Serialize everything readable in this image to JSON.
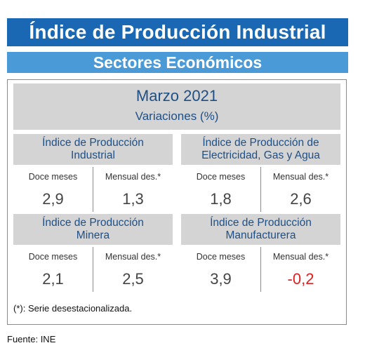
{
  "header": {
    "title": "Índice de Producción Industrial",
    "subtitle": "Sectores Económicos"
  },
  "panel": {
    "period": "Marzo 2021",
    "units": "Variaciones (%)",
    "col_labels": [
      "Doce meses",
      "Mensual des.*"
    ],
    "blocks": [
      {
        "title_lines": [
          "Índice de Producción",
          "Industrial"
        ],
        "values": [
          "2,9",
          "1,3"
        ]
      },
      {
        "title_lines": [
          "Índice de Producción de",
          "Electricidad, Gas y Agua"
        ],
        "values": [
          "1,8",
          "2,6"
        ]
      },
      {
        "title_lines": [
          "Índice de Producción",
          "Minera"
        ],
        "values": [
          "2,1",
          "2,5"
        ]
      },
      {
        "title_lines": [
          "Índice de Producción",
          "Manufacturera"
        ],
        "values": [
          "3,9",
          "-0,2"
        ]
      }
    ],
    "footnote": "(*): Serie desestacionalizada."
  },
  "source": "Fuente: INE",
  "colors": {
    "banner_main": "#1a68b3",
    "banner_sub": "#4a9ad8",
    "text_blue": "#1e4f86",
    "negative": "#e02020"
  }
}
